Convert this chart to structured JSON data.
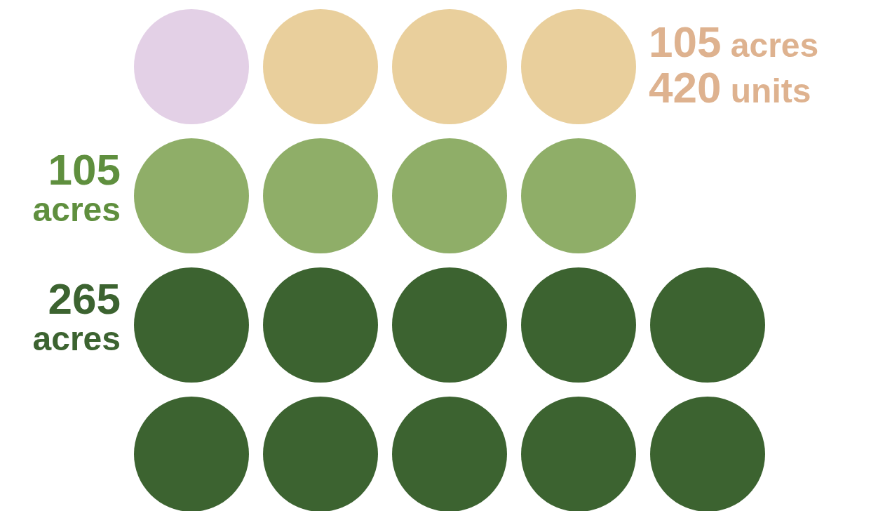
{
  "chart_data": {
    "type": "other",
    "categories": [
      null,
      null,
      null
    ],
    "values": [
      105,
      105,
      265
    ],
    "colors": [
      "#e9cf9c",
      "#8fae68",
      "#3c6330"
    ],
    "value_labels": [
      "105 acres\n420 units",
      "105\nacres",
      "265\nacres"
    ]
  }
}
